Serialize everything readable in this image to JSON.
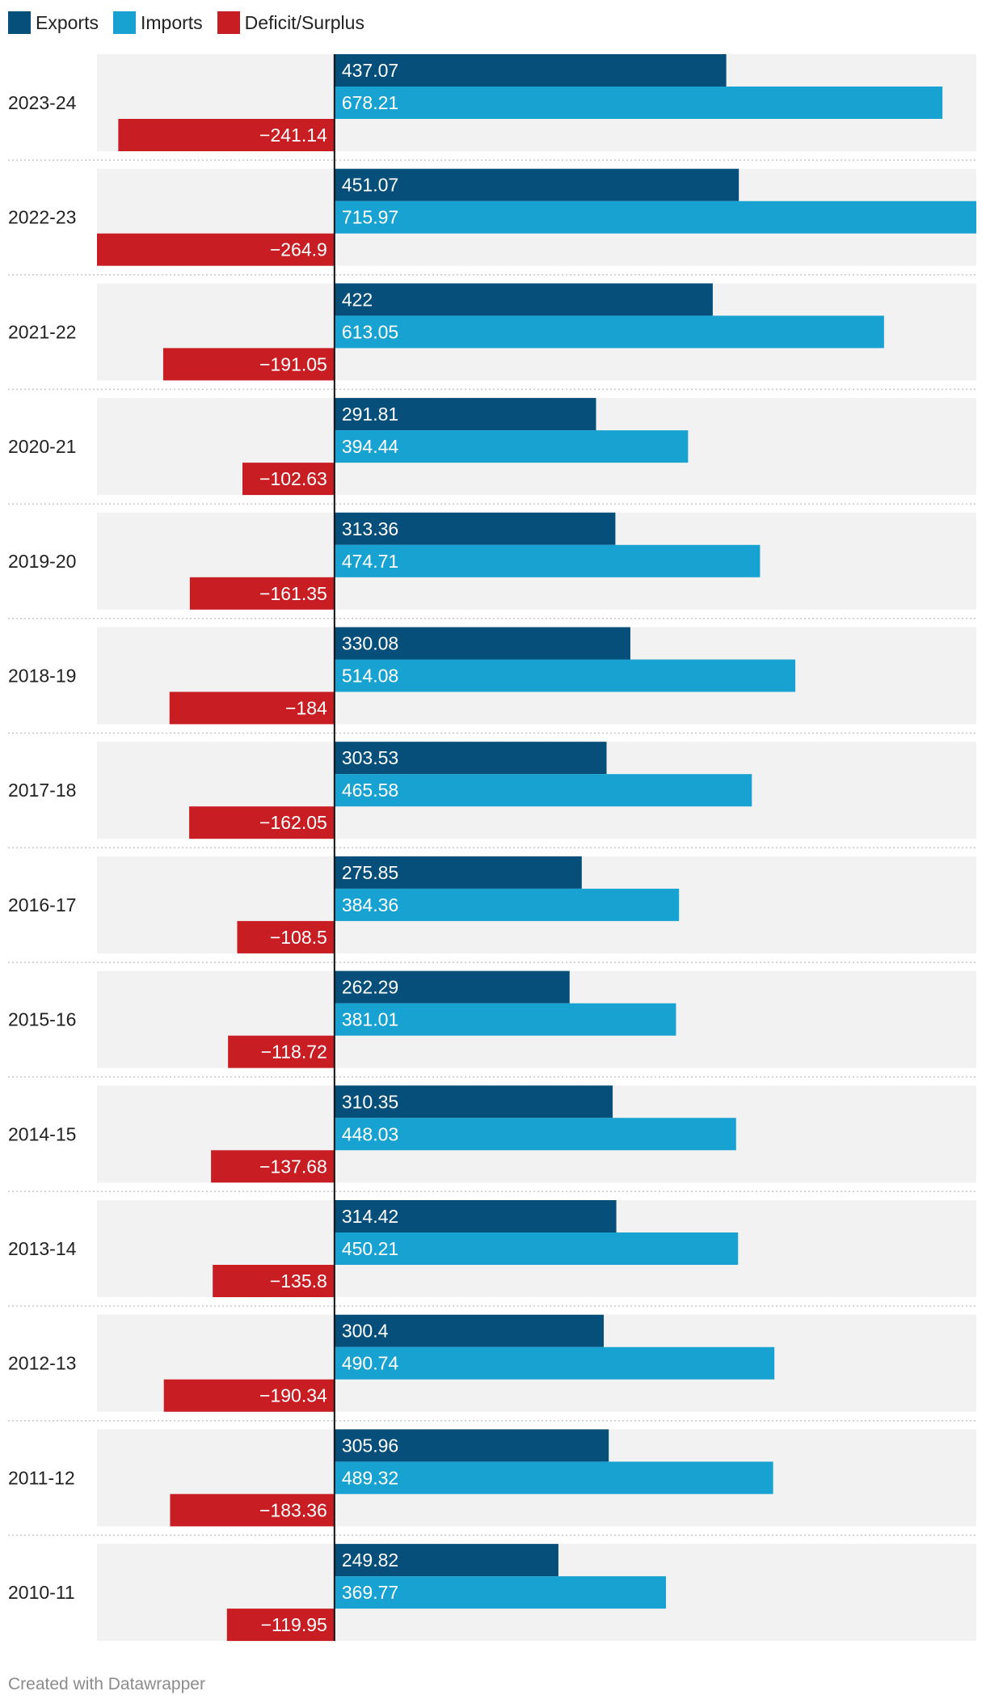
{
  "chart_data": {
    "type": "bar",
    "orientation": "horizontal",
    "categories": [
      "2023-24",
      "2022-23",
      "2021-22",
      "2020-21",
      "2019-20",
      "2018-19",
      "2017-18",
      "2016-17",
      "2015-16",
      "2014-15",
      "2013-14",
      "2012-13",
      "2011-12",
      "2010-11"
    ],
    "series": [
      {
        "name": "Exports",
        "color": "#064f7a",
        "values": [
          437.07,
          451.07,
          422,
          291.81,
          313.36,
          330.08,
          303.53,
          275.85,
          262.29,
          310.35,
          314.42,
          300.4,
          305.96,
          249.82
        ]
      },
      {
        "name": "Imports",
        "color": "#18a2d1",
        "values": [
          678.21,
          715.97,
          613.05,
          394.44,
          474.71,
          514.08,
          465.58,
          384.36,
          381.01,
          448.03,
          450.21,
          490.74,
          489.32,
          369.77
        ]
      },
      {
        "name": "Deficit/Surplus",
        "color": "#c81e23",
        "values": [
          -241.14,
          -264.9,
          -191.05,
          -102.63,
          -161.35,
          -184,
          -162.05,
          -108.5,
          -118.72,
          -137.68,
          -135.8,
          -190.34,
          -183.36,
          -119.95
        ]
      }
    ],
    "value_labels": {
      "Exports": [
        "437.07",
        "451.07",
        "422",
        "291.81",
        "313.36",
        "330.08",
        "303.53",
        "275.85",
        "262.29",
        "310.35",
        "314.42",
        "300.4",
        "305.96",
        "249.82"
      ],
      "Imports": [
        "678.21",
        "715.97",
        "613.05",
        "394.44",
        "474.71",
        "514.08",
        "465.58",
        "384.36",
        "381.01",
        "448.03",
        "450.21",
        "490.74",
        "489.32",
        "369.77"
      ],
      "Deficit/Surplus": [
        "−241.14",
        "−264.9",
        "−191.05",
        "−102.63",
        "−161.35",
        "−184",
        "−162.05",
        "−108.5",
        "−118.72",
        "−137.68",
        "−135.8",
        "−190.34",
        "−183.36",
        "−119.95"
      ]
    },
    "xlim": [
      -264.9,
      715.97
    ],
    "legend_position": "top-left"
  },
  "colors": {
    "row_background": "#f2f2f2",
    "zero_line": "#111111",
    "separator": "#c8c8c8"
  },
  "footer": "Created with Datawrapper"
}
